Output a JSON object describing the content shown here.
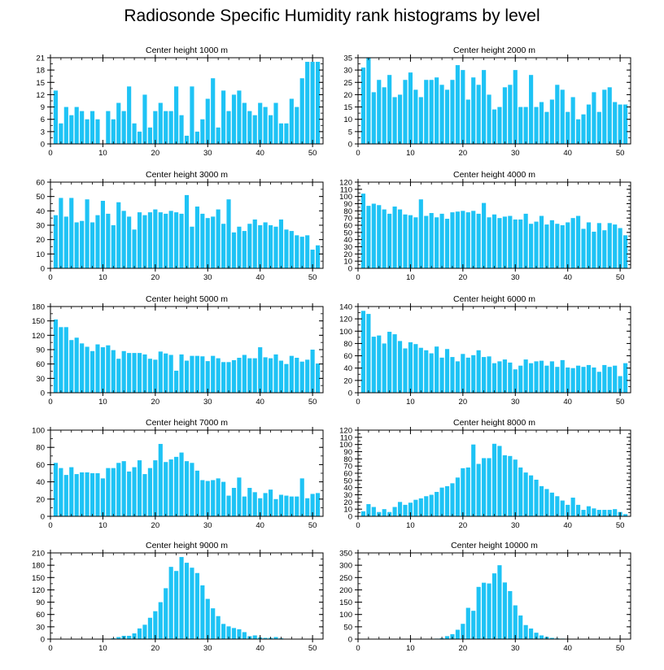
{
  "figure_title": "Radiosonde Specific Humidity rank histograms by level",
  "bar_color": "#1ec3f5",
  "chart_data": [
    {
      "type": "bar",
      "title": "Center height 1000 m",
      "x": [
        1,
        2,
        3,
        4,
        5,
        6,
        7,
        8,
        9,
        10,
        11,
        12,
        13,
        14,
        15,
        16,
        17,
        18,
        19,
        20,
        21,
        22,
        23,
        24,
        25,
        26,
        27,
        28,
        29,
        30,
        31,
        32,
        33,
        34,
        35,
        36,
        37,
        38,
        39,
        40,
        41,
        42,
        43,
        44,
        45,
        46,
        47,
        48,
        49,
        50,
        51
      ],
      "values": [
        13,
        5,
        9,
        7,
        9,
        8,
        6,
        8,
        6,
        0,
        8,
        6,
        10,
        8,
        14,
        5,
        3,
        12,
        4,
        8,
        10,
        8,
        8,
        14,
        7,
        2,
        14,
        3,
        6,
        11,
        16,
        4,
        13,
        8,
        12,
        13,
        10,
        8,
        7,
        10,
        9,
        7,
        10,
        5,
        5,
        11,
        9,
        16,
        20,
        20,
        20
      ],
      "xlim": [
        0,
        52
      ],
      "xticks": [
        0,
        10,
        20,
        30,
        40,
        50
      ],
      "xminor": 2,
      "ylim": [
        0,
        21
      ],
      "yticks": [
        0,
        3,
        6,
        9,
        12,
        15,
        18,
        21
      ],
      "yminor": 1.5
    },
    {
      "type": "bar",
      "title": "Center height 2000 m",
      "x": [
        1,
        2,
        3,
        4,
        5,
        6,
        7,
        8,
        9,
        10,
        11,
        12,
        13,
        14,
        15,
        16,
        17,
        18,
        19,
        20,
        21,
        22,
        23,
        24,
        25,
        26,
        27,
        28,
        29,
        30,
        31,
        32,
        33,
        34,
        35,
        36,
        37,
        38,
        39,
        40,
        41,
        42,
        43,
        44,
        45,
        46,
        47,
        48,
        49,
        50,
        51
      ],
      "values": [
        31,
        35,
        21,
        26,
        23,
        28,
        19,
        20,
        26,
        29,
        22,
        19,
        26,
        26,
        27,
        24,
        22,
        26,
        32,
        30,
        18,
        27,
        24,
        30,
        20,
        14,
        15,
        23,
        24,
        30,
        15,
        15,
        28,
        15,
        17,
        13,
        18,
        24,
        22,
        13,
        19,
        10,
        12,
        16,
        21,
        13,
        22,
        23,
        17,
        16,
        16
      ],
      "xlim": [
        0,
        52
      ],
      "xticks": [
        0,
        10,
        20,
        30,
        40,
        50
      ],
      "xminor": 2,
      "ylim": [
        0,
        35
      ],
      "yticks": [
        0,
        5,
        10,
        15,
        20,
        25,
        30,
        35
      ],
      "yminor": 2.5
    },
    {
      "type": "bar",
      "title": "Center height 3000 m",
      "x": [
        1,
        2,
        3,
        4,
        5,
        6,
        7,
        8,
        9,
        10,
        11,
        12,
        13,
        14,
        15,
        16,
        17,
        18,
        19,
        20,
        21,
        22,
        23,
        24,
        25,
        26,
        27,
        28,
        29,
        30,
        31,
        32,
        33,
        34,
        35,
        36,
        37,
        38,
        39,
        40,
        41,
        42,
        43,
        44,
        45,
        46,
        47,
        48,
        49,
        50,
        51
      ],
      "values": [
        37,
        49,
        36,
        49,
        32,
        33,
        48,
        32,
        37,
        47,
        38,
        30,
        46,
        40,
        36,
        27,
        39,
        37,
        39,
        41,
        39,
        38,
        40,
        39,
        38,
        51,
        29,
        43,
        38,
        35,
        36,
        41,
        31,
        48,
        25,
        29,
        26,
        31,
        34,
        30,
        32,
        30,
        29,
        34,
        27,
        26,
        23,
        22,
        23,
        13,
        16
      ],
      "xlim": [
        0,
        52
      ],
      "xticks": [
        0,
        10,
        20,
        30,
        40,
        50
      ],
      "xminor": 2,
      "ylim": [
        0,
        60
      ],
      "yticks": [
        0,
        10,
        20,
        30,
        40,
        50,
        60
      ],
      "yminor": 5
    },
    {
      "type": "bar",
      "title": "Center height 4000 m",
      "x": [
        1,
        2,
        3,
        4,
        5,
        6,
        7,
        8,
        9,
        10,
        11,
        12,
        13,
        14,
        15,
        16,
        17,
        18,
        19,
        20,
        21,
        22,
        23,
        24,
        25,
        26,
        27,
        28,
        29,
        30,
        31,
        32,
        33,
        34,
        35,
        36,
        37,
        38,
        39,
        40,
        41,
        42,
        43,
        44,
        45,
        46,
        47,
        48,
        49,
        50,
        51
      ],
      "values": [
        104,
        87,
        90,
        88,
        82,
        76,
        86,
        82,
        75,
        74,
        71,
        96,
        73,
        77,
        71,
        76,
        69,
        78,
        79,
        80,
        78,
        80,
        76,
        91,
        71,
        75,
        70,
        72,
        73,
        68,
        68,
        76,
        62,
        65,
        73,
        61,
        67,
        62,
        60,
        64,
        70,
        73,
        55,
        64,
        51,
        63,
        53,
        63,
        61,
        56,
        46
      ],
      "xlim": [
        0,
        52
      ],
      "xticks": [
        0,
        10,
        20,
        30,
        40,
        50
      ],
      "xminor": 2,
      "ylim": [
        0,
        120
      ],
      "yticks": [
        0,
        10,
        20,
        30,
        40,
        50,
        60,
        70,
        80,
        90,
        100,
        110,
        120
      ],
      "yminor": 5
    },
    {
      "type": "bar",
      "title": "Center height 5000 m",
      "x": [
        1,
        2,
        3,
        4,
        5,
        6,
        7,
        8,
        9,
        10,
        11,
        12,
        13,
        14,
        15,
        16,
        17,
        18,
        19,
        20,
        21,
        22,
        23,
        24,
        25,
        26,
        27,
        28,
        29,
        30,
        31,
        32,
        33,
        34,
        35,
        36,
        37,
        38,
        39,
        40,
        41,
        42,
        43,
        44,
        45,
        46,
        47,
        48,
        49,
        50,
        51
      ],
      "values": [
        153,
        137,
        137,
        110,
        115,
        103,
        96,
        87,
        101,
        95,
        99,
        89,
        71,
        87,
        83,
        83,
        83,
        80,
        71,
        69,
        86,
        82,
        79,
        46,
        80,
        67,
        77,
        77,
        76,
        66,
        77,
        72,
        64,
        64,
        68,
        73,
        79,
        72,
        72,
        95,
        74,
        72,
        80,
        67,
        60,
        77,
        73,
        65,
        69,
        90,
        61
      ],
      "xlim": [
        0,
        52
      ],
      "xticks": [
        0,
        10,
        20,
        30,
        40,
        50
      ],
      "xminor": 2,
      "ylim": [
        0,
        180
      ],
      "yticks": [
        0,
        30,
        60,
        90,
        120,
        150,
        180
      ],
      "yminor": 15
    },
    {
      "type": "bar",
      "title": "Center height 6000 m",
      "x": [
        1,
        2,
        3,
        4,
        5,
        6,
        7,
        8,
        9,
        10,
        11,
        12,
        13,
        14,
        15,
        16,
        17,
        18,
        19,
        20,
        21,
        22,
        23,
        24,
        25,
        26,
        27,
        28,
        29,
        30,
        31,
        32,
        33,
        34,
        35,
        36,
        37,
        38,
        39,
        40,
        41,
        42,
        43,
        44,
        45,
        46,
        47,
        48,
        49,
        50,
        51
      ],
      "values": [
        133,
        128,
        91,
        93,
        80,
        99,
        95,
        84,
        72,
        82,
        79,
        73,
        69,
        64,
        75,
        57,
        71,
        58,
        51,
        63,
        57,
        61,
        69,
        58,
        59,
        48,
        51,
        54,
        49,
        38,
        44,
        54,
        48,
        51,
        52,
        44,
        51,
        42,
        53,
        41,
        40,
        44,
        42,
        45,
        41,
        34,
        45,
        42,
        44,
        27,
        48
      ],
      "xlim": [
        0,
        52
      ],
      "xticks": [
        0,
        10,
        20,
        30,
        40,
        50
      ],
      "xminor": 2,
      "ylim": [
        0,
        140
      ],
      "yticks": [
        0,
        20,
        40,
        60,
        80,
        100,
        120,
        140
      ],
      "yminor": 10
    },
    {
      "type": "bar",
      "title": "Center height 7000 m",
      "x": [
        1,
        2,
        3,
        4,
        5,
        6,
        7,
        8,
        9,
        10,
        11,
        12,
        13,
        14,
        15,
        16,
        17,
        18,
        19,
        20,
        21,
        22,
        23,
        24,
        25,
        26,
        27,
        28,
        29,
        30,
        31,
        32,
        33,
        34,
        35,
        36,
        37,
        38,
        39,
        40,
        41,
        42,
        43,
        44,
        45,
        46,
        47,
        48,
        49,
        50,
        51
      ],
      "values": [
        62,
        56,
        48,
        57,
        49,
        51,
        51,
        50,
        50,
        44,
        56,
        56,
        62,
        64,
        52,
        57,
        65,
        49,
        56,
        65,
        84,
        63,
        66,
        69,
        74,
        64,
        62,
        53,
        42,
        41,
        42,
        44,
        40,
        24,
        33,
        45,
        23,
        33,
        28,
        21,
        27,
        31,
        20,
        25,
        24,
        23,
        23,
        44,
        21,
        26,
        27
      ],
      "xlim": [
        0,
        52
      ],
      "xticks": [
        0,
        10,
        20,
        30,
        40,
        50
      ],
      "xminor": 2,
      "ylim": [
        0,
        100
      ],
      "yticks": [
        0,
        20,
        40,
        60,
        80,
        100
      ],
      "yminor": 10
    },
    {
      "type": "bar",
      "title": "Center height 8000 m",
      "x": [
        1,
        2,
        3,
        4,
        5,
        6,
        7,
        8,
        9,
        10,
        11,
        12,
        13,
        14,
        15,
        16,
        17,
        18,
        19,
        20,
        21,
        22,
        23,
        24,
        25,
        26,
        27,
        28,
        29,
        30,
        31,
        32,
        33,
        34,
        35,
        36,
        37,
        38,
        39,
        40,
        41,
        42,
        43,
        44,
        45,
        46,
        47,
        48,
        49,
        50,
        51
      ],
      "values": [
        7,
        17,
        13,
        6,
        10,
        6,
        13,
        20,
        16,
        19,
        23,
        25,
        28,
        30,
        34,
        40,
        42,
        46,
        54,
        67,
        68,
        100,
        73,
        81,
        81,
        101,
        98,
        85,
        84,
        79,
        68,
        61,
        57,
        51,
        42,
        38,
        33,
        28,
        22,
        16,
        26,
        16,
        9,
        14,
        11,
        9,
        9,
        9,
        10,
        6,
        3
      ],
      "xlim": [
        0,
        52
      ],
      "xticks": [
        0,
        10,
        20,
        30,
        40,
        50
      ],
      "xminor": 2,
      "ylim": [
        0,
        120
      ],
      "yticks": [
        0,
        10,
        20,
        30,
        40,
        50,
        60,
        70,
        80,
        90,
        100,
        110,
        120
      ],
      "yminor": 5
    },
    {
      "type": "bar",
      "title": "Center height 9000 m",
      "x": [
        1,
        2,
        3,
        4,
        5,
        6,
        7,
        8,
        9,
        10,
        11,
        12,
        13,
        14,
        15,
        16,
        17,
        18,
        19,
        20,
        21,
        22,
        23,
        24,
        25,
        26,
        27,
        28,
        29,
        30,
        31,
        32,
        33,
        34,
        35,
        36,
        37,
        38,
        39,
        40,
        41,
        42,
        43,
        44,
        45,
        46,
        47,
        48,
        49,
        50,
        51
      ],
      "values": [
        0,
        0,
        0,
        0,
        0,
        0,
        0,
        0,
        0,
        0,
        0,
        2,
        5,
        8,
        8,
        14,
        26,
        35,
        52,
        68,
        90,
        124,
        176,
        166,
        200,
        186,
        174,
        161,
        131,
        98,
        75,
        56,
        37,
        31,
        27,
        24,
        17,
        7,
        9,
        4,
        3,
        3,
        5,
        2,
        1,
        1,
        1,
        1,
        0,
        1,
        0
      ],
      "xlim": [
        0,
        52
      ],
      "xticks": [
        0,
        10,
        20,
        30,
        40,
        50
      ],
      "xminor": 2,
      "ylim": [
        0,
        210
      ],
      "yticks": [
        0,
        30,
        60,
        90,
        120,
        150,
        180,
        210
      ],
      "yminor": 15
    },
    {
      "type": "bar",
      "title": "Center height 10000 m",
      "x": [
        1,
        2,
        3,
        4,
        5,
        6,
        7,
        8,
        9,
        10,
        11,
        12,
        13,
        14,
        15,
        16,
        17,
        18,
        19,
        20,
        21,
        22,
        23,
        24,
        25,
        26,
        27,
        28,
        29,
        30,
        31,
        32,
        33,
        34,
        35,
        36,
        37,
        38,
        39,
        40,
        41,
        42,
        43,
        44,
        45,
        46,
        47,
        48,
        49,
        50,
        51
      ],
      "values": [
        0,
        0,
        0,
        0,
        0,
        0,
        0,
        0,
        0,
        0,
        0,
        0,
        0,
        0,
        2,
        4,
        12,
        20,
        38,
        62,
        127,
        115,
        212,
        229,
        226,
        267,
        300,
        230,
        195,
        137,
        96,
        57,
        43,
        26,
        15,
        9,
        5,
        3,
        2,
        1,
        1,
        1,
        1,
        0,
        1,
        0,
        0,
        0,
        0,
        0,
        0
      ],
      "xlim": [
        0,
        52
      ],
      "xticks": [
        0,
        10,
        20,
        30,
        40,
        50
      ],
      "xminor": 2,
      "ylim": [
        0,
        350
      ],
      "yticks": [
        0,
        50,
        100,
        150,
        200,
        250,
        300,
        350
      ],
      "yminor": 25
    }
  ]
}
